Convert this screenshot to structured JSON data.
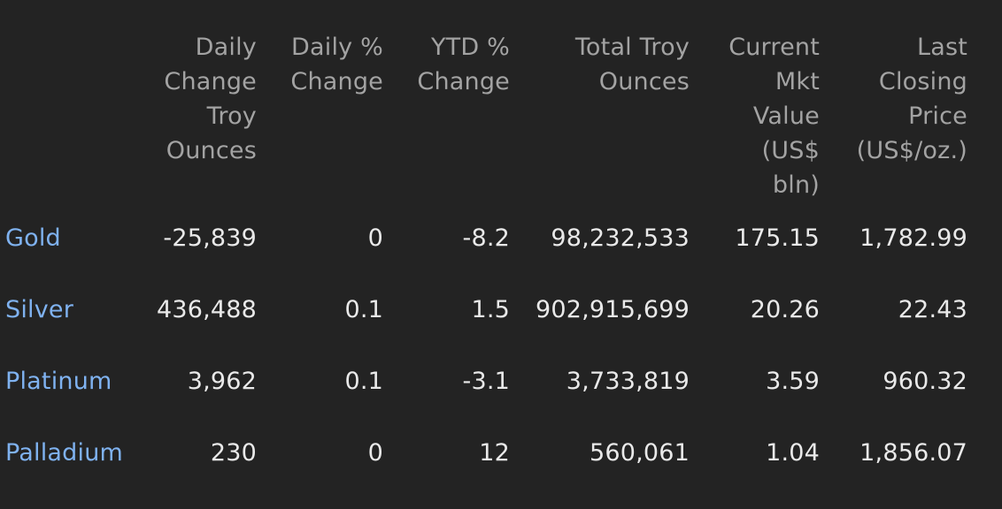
{
  "columns": [
    {
      "lines": [
        "Daily",
        "Change",
        "Troy",
        "Ounces"
      ]
    },
    {
      "lines": [
        "Daily %",
        "Change"
      ]
    },
    {
      "lines": [
        "YTD %",
        "Change"
      ]
    },
    {
      "lines": [
        "Total Troy",
        "Ounces"
      ]
    },
    {
      "lines": [
        "Current",
        "Mkt",
        "Value",
        "(US$",
        "bln)"
      ]
    },
    {
      "lines": [
        "Last",
        "Closing",
        "Price",
        "(US$/oz.)"
      ]
    }
  ],
  "rows": [
    {
      "metal": "Gold",
      "daily_change_oz": "-25,839",
      "daily_pct": "0",
      "ytd_pct": "-8.2",
      "total_oz": "98,232,533",
      "mkt_value": "175.15",
      "last_price": "1,782.99"
    },
    {
      "metal": "Silver",
      "daily_change_oz": "436,488",
      "daily_pct": "0.1",
      "ytd_pct": "1.5",
      "total_oz": "902,915,699",
      "mkt_value": "20.26",
      "last_price": "22.43"
    },
    {
      "metal": "Platinum",
      "daily_change_oz": "3,962",
      "daily_pct": "0.1",
      "ytd_pct": "-3.1",
      "total_oz": "3,733,819",
      "mkt_value": "3.59",
      "last_price": "960.32"
    },
    {
      "metal": "Palladium",
      "daily_change_oz": "230",
      "daily_pct": "0",
      "ytd_pct": "12",
      "total_oz": "560,061",
      "mkt_value": "1.04",
      "last_price": "1,856.07"
    }
  ],
  "colors": {
    "background": "#232323",
    "header_text": "#a3a3a3",
    "value_text": "#e9e9e9",
    "metal_link": "#7fb2f0"
  }
}
